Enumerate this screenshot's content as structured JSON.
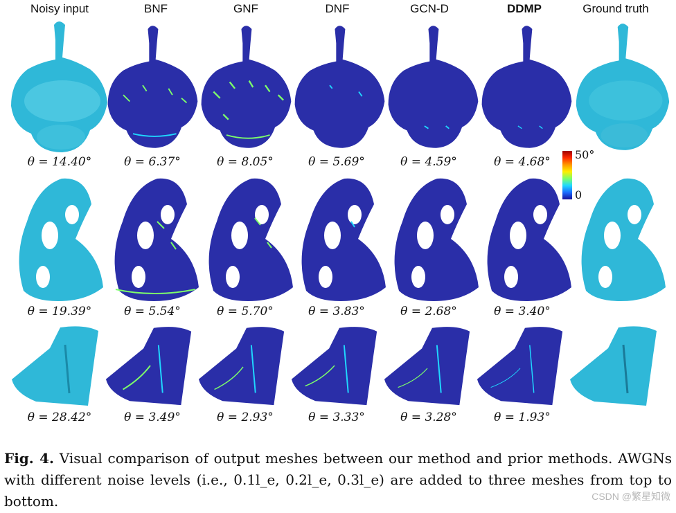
{
  "columns": [
    "Noisy input",
    "BNF",
    "GNF",
    "DNF",
    "GCN-D",
    "DDMP",
    "Ground truth"
  ],
  "rows": [
    {
      "name": "row-ankylosaurus",
      "thetas": [
        "θ = 14.40°",
        "θ = 6.37°",
        "θ = 8.05°",
        "θ = 5.69°",
        "θ = 4.59°",
        "θ = 4.68°"
      ]
    },
    {
      "name": "row-fertility",
      "thetas": [
        "θ = 19.39°",
        "θ = 5.54°",
        "θ = 5.70°",
        "θ = 3.83°",
        "θ = 2.68°",
        "θ = 3.40°"
      ]
    },
    {
      "name": "row-cad-part",
      "thetas": [
        "θ = 28.42°",
        "θ = 3.49°",
        "θ = 2.93°",
        "θ = 3.33°",
        "θ = 3.28°",
        "θ = 1.93°"
      ]
    }
  ],
  "colorbar": {
    "max_label": "50°",
    "min_label": "0",
    "colors": [
      "#a00000",
      "#ffee00",
      "#1fd8ff",
      "#17109a"
    ]
  },
  "caption": {
    "fig_label": "Fig. 4.",
    "text": "Visual comparison of output meshes between our method and prior methods. AWGNs with different noise levels (i.e., 0.1l_e, 0.2l_e, 0.3l_e) are added to three meshes from top to bottom."
  },
  "watermark": "CSDN @繁星知微",
  "palette": {
    "noisy_cyan": "#2fb8d8",
    "error_blue": "#2a2ea8",
    "highlight": "#7dff6a"
  }
}
